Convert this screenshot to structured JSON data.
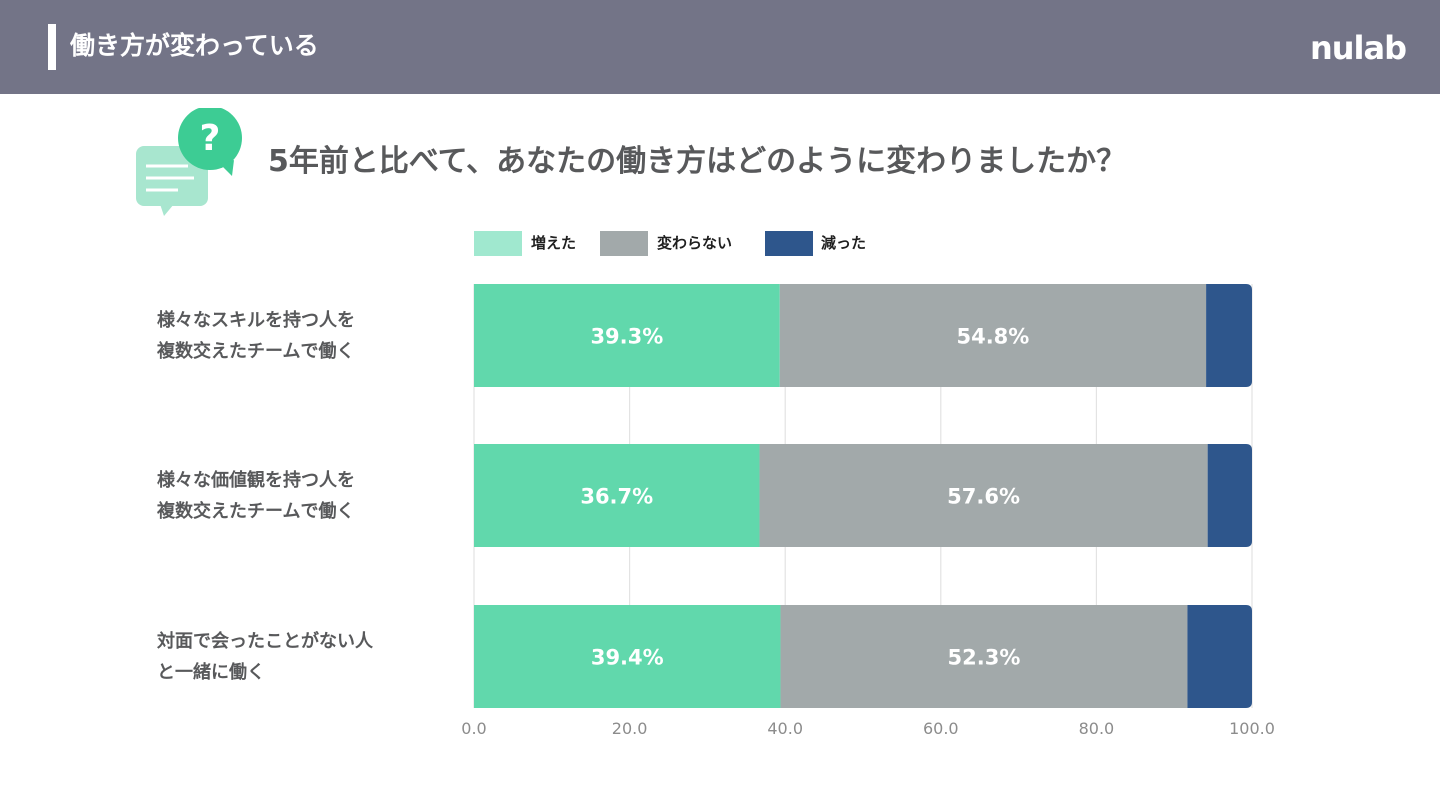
{
  "header": {
    "title": "働き方が変わっている",
    "logo": "nulab"
  },
  "question": "5年前と比べて、あなたの働き方はどのように変わりましたか？",
  "colors": {
    "header_bg": "#737487",
    "increased": "#61d8ac",
    "unchanged": "#a2a9aa",
    "decreased": "#2e568c",
    "legend_increased": "#a0e8cf"
  },
  "icon": {
    "name": "question-chat-icon",
    "symbol": "?"
  },
  "chart_data": {
    "type": "bar",
    "orientation": "horizontal",
    "stacked": true,
    "categories": [
      [
        "様々なスキルを持つ人を",
        "複数交えたチームで働く"
      ],
      [
        "様々な価値観を持つ人を",
        "複数交えたチームで働く"
      ],
      [
        "対面で会ったことがない人",
        "と一緒に働く"
      ]
    ],
    "series": [
      {
        "name": "増えた",
        "values": [
          39.3,
          36.7,
          39.4
        ],
        "labels": [
          "39.3%",
          "36.7%",
          "39.4%"
        ],
        "color": "#61d8ac"
      },
      {
        "name": "変わらない",
        "values": [
          54.8,
          57.6,
          52.3
        ],
        "labels": [
          "54.8%",
          "57.6%",
          "52.3%"
        ],
        "color": "#a2a9aa"
      },
      {
        "name": "減った",
        "values": [
          5.9,
          5.7,
          8.3
        ],
        "color": "#2e568c"
      }
    ],
    "xlim": [
      0,
      100
    ],
    "xticks": [
      "0.0",
      "20.0",
      "40.0",
      "60.0",
      "80.0",
      "100.0"
    ],
    "grid": true,
    "legend_position": "top"
  }
}
